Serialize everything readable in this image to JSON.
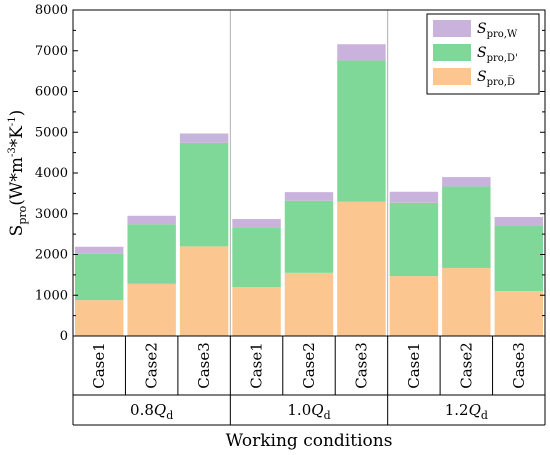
{
  "chart_data": {
    "type": "bar",
    "stacked": true,
    "categories": [
      "Case1",
      "Case2",
      "Case3",
      "Case1",
      "Case2",
      "Case3",
      "Case1",
      "Case2",
      "Case3"
    ],
    "groups": [
      {
        "label_base": "0.8",
        "label_var": "Q",
        "label_sub": "d"
      },
      {
        "label_base": "1.0",
        "label_var": "Q",
        "label_sub": "d"
      },
      {
        "label_base": "1.2",
        "label_var": "Q",
        "label_sub": "d"
      }
    ],
    "series": [
      {
        "name_var": "S",
        "name_sub": "pro,D̅",
        "color": "#fcc690",
        "values": [
          880,
          1280,
          2200,
          1200,
          1550,
          3300,
          1470,
          1670,
          1100
        ]
      },
      {
        "name_var": "S",
        "name_sub": "pro,D'",
        "color": "#7fd898",
        "values": [
          1140,
          1460,
          2540,
          1470,
          1770,
          3460,
          1800,
          2000,
          1610
        ]
      },
      {
        "name_var": "S",
        "name_sub": "pro,W",
        "color": "#c9b3dd",
        "values": [
          170,
          210,
          230,
          200,
          210,
          400,
          270,
          230,
          210
        ]
      }
    ],
    "ylabel_main": "S",
    "ylabel_sub": "pro",
    "ylabel_units": "(W*m",
    "ylabel_exp1": "-3",
    "ylabel_mid": "*K",
    "ylabel_exp2": "-1",
    "ylabel_end": ")",
    "xlabel": "Working conditions",
    "ylim": [
      0,
      8000
    ],
    "yticks": [
      0,
      1000,
      2000,
      3000,
      4000,
      5000,
      6000,
      7000,
      8000
    ],
    "legend_position": "top-right",
    "grid": "vertical-lines-at-group-separators"
  }
}
